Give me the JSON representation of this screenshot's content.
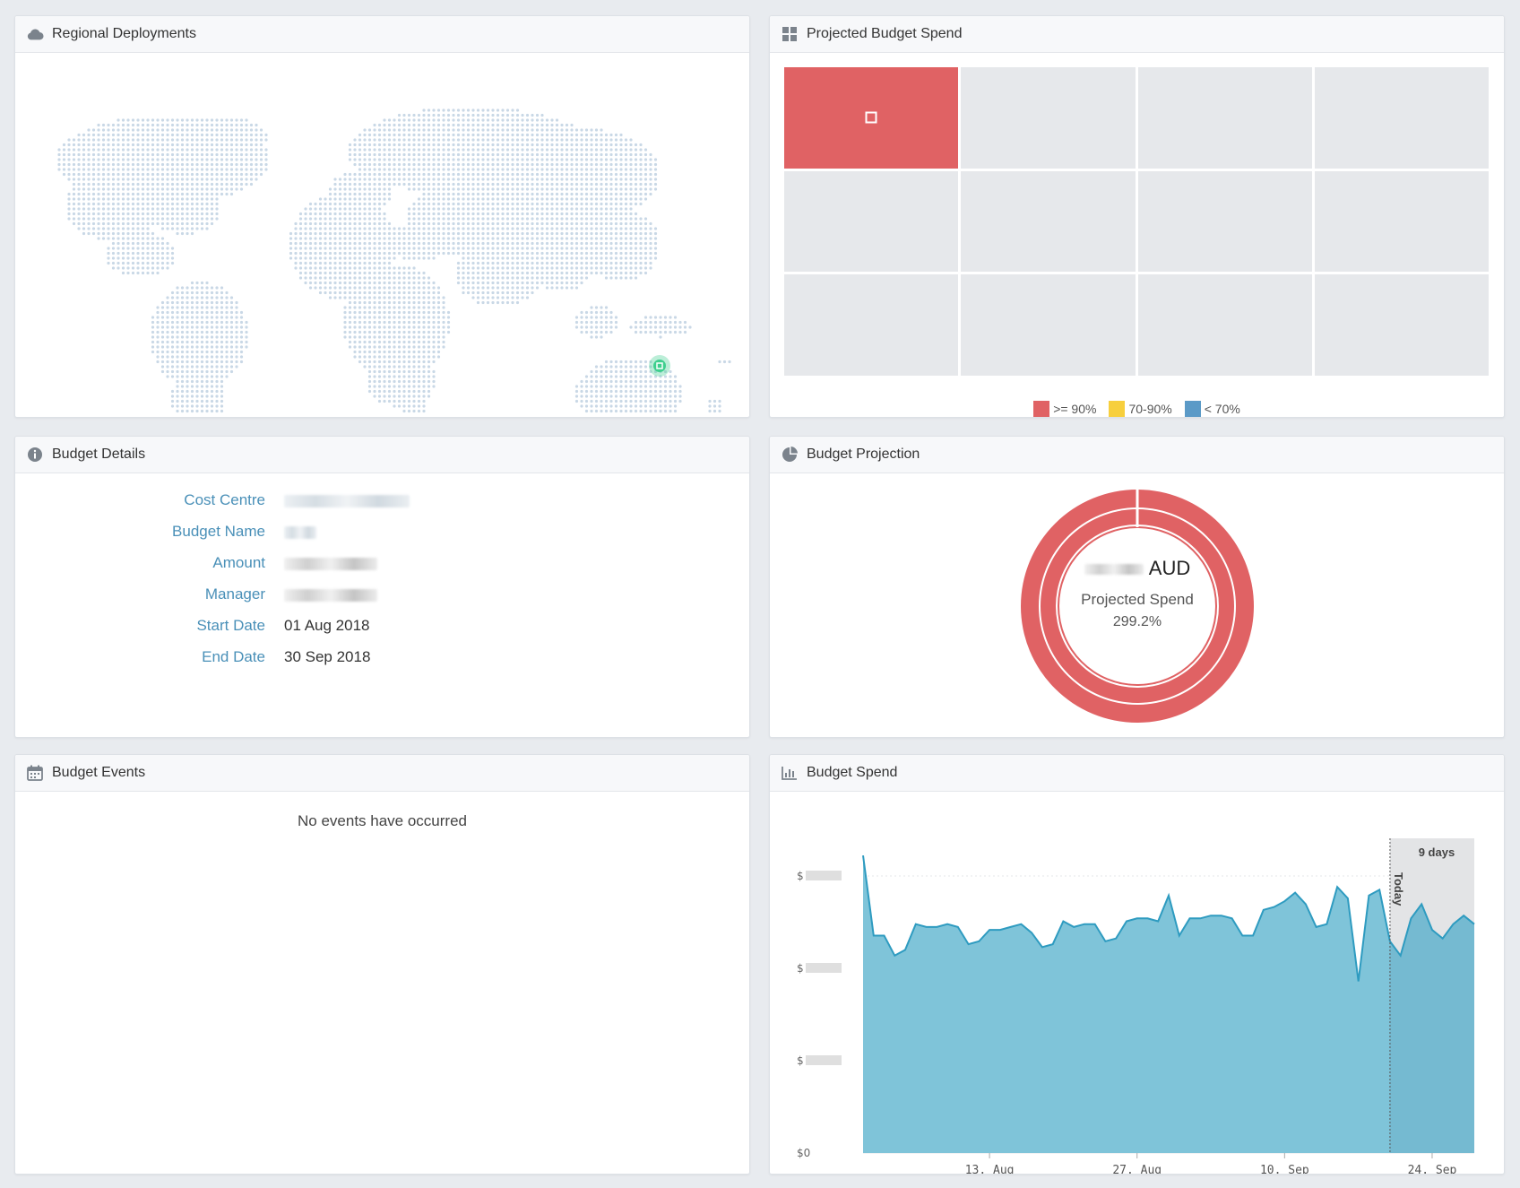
{
  "panels": {
    "regional": {
      "title": "Regional Deployments",
      "icon": "cloud-icon"
    },
    "projected": {
      "title": "Projected Budget Spend",
      "icon": "grid-icon"
    },
    "details": {
      "title": "Budget Details",
      "icon": "info-icon"
    },
    "projection": {
      "title": "Budget Projection",
      "icon": "pie-chart-icon"
    },
    "events": {
      "title": "Budget Events",
      "icon": "calendar-icon"
    },
    "spend": {
      "title": "Budget Spend",
      "icon": "bar-chart-icon"
    }
  },
  "map": {
    "marker_region": "Australia (Sydney)",
    "marker_color": "#3ecf8e",
    "dot_color": "#c9d8e6"
  },
  "heatmap": {
    "cells": [
      "red",
      "grey",
      "grey",
      "grey",
      "grey",
      "grey",
      "grey",
      "grey",
      "grey",
      "grey",
      "grey",
      "grey"
    ],
    "legend": [
      {
        "label": ">= 90%",
        "color": "#e06264"
      },
      {
        "label": "70-90%",
        "color": "#f7cf3d"
      },
      {
        "label": "< 70%",
        "color": "#5b9ac7"
      }
    ]
  },
  "details": {
    "rows": [
      {
        "label": "Cost Centre",
        "value": "",
        "redacted": true
      },
      {
        "label": "Budget Name",
        "value": "",
        "redacted": true
      },
      {
        "label": "Amount",
        "value": "",
        "redacted": true
      },
      {
        "label": "Manager",
        "value": "",
        "redacted": true
      },
      {
        "label": "Start Date",
        "value": "01 Aug 2018",
        "redacted": false
      },
      {
        "label": "End Date",
        "value": "30 Sep 2018",
        "redacted": false
      }
    ]
  },
  "projection": {
    "currency": "AUD",
    "caption": "Projected Spend",
    "percent": "299.2%",
    "color": "#e06264"
  },
  "events": {
    "empty_text": "No events have occurred"
  },
  "chart_data": {
    "type": "area",
    "x_ticks": [
      "13. Aug",
      "27. Aug",
      "10. Sep",
      "24. Sep"
    ],
    "y_ticks": [
      "$0",
      "$",
      "$",
      "$"
    ],
    "today_label": "Today",
    "forecast_label": "9 days",
    "color": "#7fc4d9",
    "line_color": "#2e9bc0",
    "series": [
      {
        "values": [
          1.04,
          0.76,
          0.76,
          0.69,
          0.71,
          0.8,
          0.79,
          0.79,
          0.8,
          0.79,
          0.73,
          0.74,
          0.78,
          0.78,
          0.79,
          0.8,
          0.77,
          0.72,
          0.73,
          0.81,
          0.79,
          0.8,
          0.8,
          0.74,
          0.75,
          0.81,
          0.82,
          0.82,
          0.81,
          0.9,
          0.76,
          0.82,
          0.82,
          0.83,
          0.83,
          0.82,
          0.76,
          0.76,
          0.85,
          0.86,
          0.88,
          0.91,
          0.87,
          0.79,
          0.8,
          0.93,
          0.89,
          0.6,
          0.9,
          0.92,
          0.74,
          0.69,
          0.82,
          0.87,
          0.78,
          0.75,
          0.8,
          0.83,
          0.8
        ]
      }
    ]
  }
}
